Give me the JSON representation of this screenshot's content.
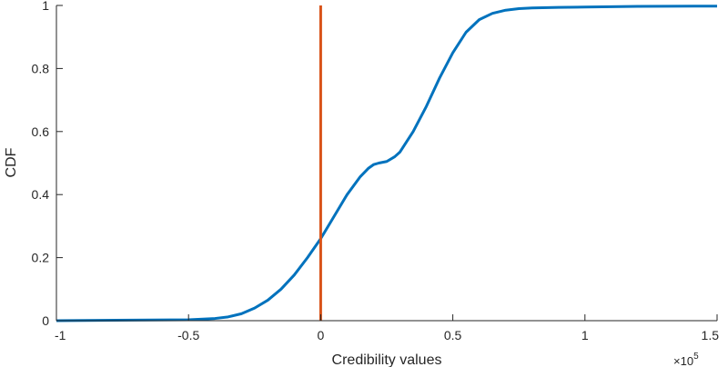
{
  "chart_data": {
    "type": "line",
    "xlabel": "Credibility values",
    "ylabel": "CDF",
    "x_multiplier_label": "×10",
    "x_multiplier_exponent": "5",
    "xlim": [
      -1,
      1.5
    ],
    "ylim": [
      0,
      1
    ],
    "x_ticks": [
      "-1",
      "-0.5",
      "0",
      "0.5",
      "1",
      "1.5"
    ],
    "y_ticks": [
      "0",
      "0.2",
      "0.4",
      "0.6",
      "0.8",
      "1"
    ],
    "grid": false,
    "legend": "none",
    "series": [
      {
        "color": "#0072BD",
        "x": [
          -1.0,
          -0.5,
          -0.4,
          -0.35,
          -0.3,
          -0.25,
          -0.2,
          -0.15,
          -0.1,
          -0.05,
          0.0,
          0.05,
          0.1,
          0.15,
          0.18,
          0.2,
          0.22,
          0.25,
          0.28,
          0.3,
          0.35,
          0.4,
          0.45,
          0.5,
          0.55,
          0.6,
          0.65,
          0.7,
          0.75,
          0.8,
          0.9,
          1.0,
          1.2,
          1.5
        ],
        "y": [
          0.0,
          0.003,
          0.007,
          0.012,
          0.022,
          0.04,
          0.065,
          0.1,
          0.145,
          0.2,
          0.26,
          0.33,
          0.4,
          0.457,
          0.483,
          0.495,
          0.5,
          0.505,
          0.52,
          0.535,
          0.6,
          0.68,
          0.77,
          0.85,
          0.915,
          0.955,
          0.975,
          0.985,
          0.99,
          0.992,
          0.994,
          0.995,
          0.997,
          0.998
        ]
      },
      {
        "color": "#D95319",
        "x": [
          0,
          0
        ],
        "y": [
          0,
          1
        ]
      }
    ]
  }
}
